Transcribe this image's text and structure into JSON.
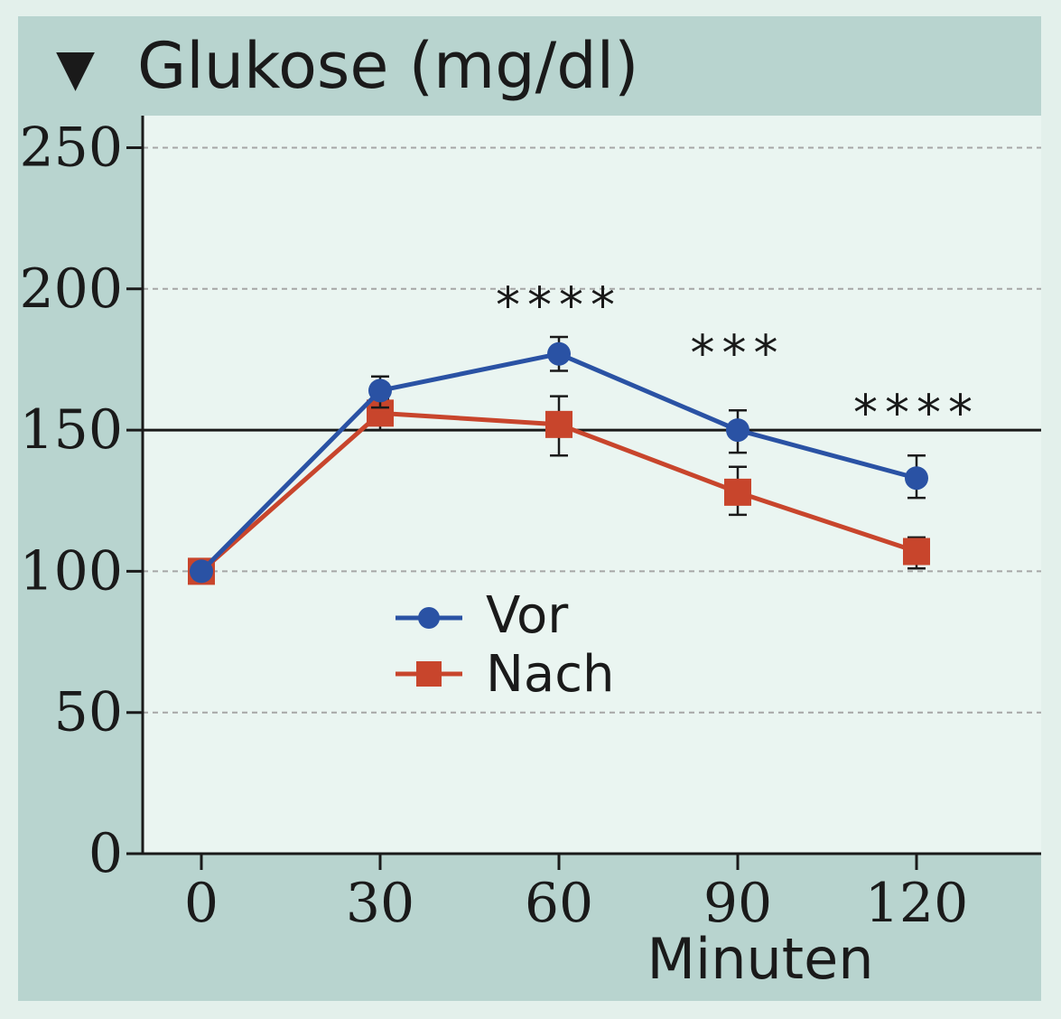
{
  "colors": {
    "panel": "#b8d4cf",
    "plot_bg": "#eaf5f1",
    "outer_bg": "#e3f0eb",
    "vor": "#2a52a4",
    "nach": "#c8452c",
    "text": "#1a1a1a",
    "grid": "#a6a6a6"
  },
  "chart_data": {
    "type": "line",
    "title": "Glukose (mg/dl)",
    "title_marker": "▼",
    "xlabel": "Minuten",
    "ylabel": "",
    "x": [
      0,
      30,
      60,
      90,
      120
    ],
    "xlim": [
      -10,
      140
    ],
    "ylim": [
      0,
      260
    ],
    "yticks": [
      0,
      50,
      100,
      150,
      200,
      250
    ],
    "grid": "horizontal dashed",
    "reference_line": 150,
    "legend_placement": "center",
    "series": [
      {
        "name": "Vor",
        "marker": "circle",
        "color": "#2a52a4",
        "values": [
          100,
          164,
          177,
          150,
          133
        ],
        "error_low": [
          100,
          158,
          171,
          142,
          126
        ],
        "error_high": [
          100,
          169,
          183,
          157,
          141
        ]
      },
      {
        "name": "Nach",
        "marker": "square",
        "color": "#c8452c",
        "values": [
          100,
          156,
          152,
          128,
          107
        ],
        "error_low": [
          100,
          150,
          141,
          120,
          101
        ],
        "error_high": [
          100,
          161,
          162,
          137,
          112
        ]
      }
    ],
    "annotations": [
      {
        "x": 60,
        "y": 194,
        "text": "****"
      },
      {
        "x": 90,
        "y": 177,
        "text": "***"
      },
      {
        "x": 120,
        "y": 156,
        "text": "****"
      }
    ]
  }
}
